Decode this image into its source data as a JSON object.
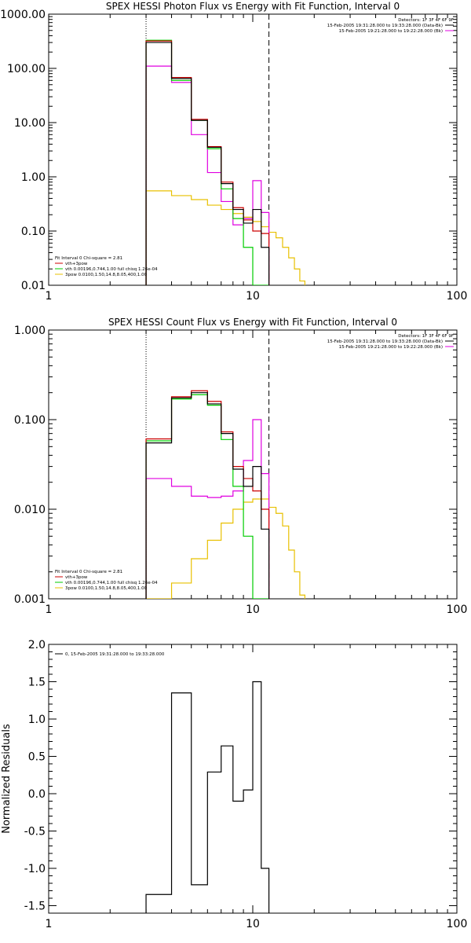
{
  "chart_data": [
    {
      "type": "line",
      "step": true,
      "title": "SPEX HESSI Photon Flux vs Energy with Fit Function, Interval 0",
      "xscale": "log",
      "yscale": "log",
      "xlim": [
        1,
        100
      ],
      "ylim": [
        0.01,
        1000
      ],
      "xticks": [
        "1",
        "10",
        "100"
      ],
      "yticks": [
        "0.01",
        "0.10",
        "1.00",
        "10.00",
        "100.00",
        "1000.00"
      ],
      "ytick_values": [
        0.01,
        0.1,
        1,
        10,
        100,
        1000
      ],
      "ylabel": "",
      "vlines": [
        {
          "x": 3,
          "style": "dotted"
        },
        {
          "x": 12,
          "style": "dashed"
        }
      ],
      "legend_top_right": [
        {
          "text": "Detectors: 1F 3F 4F 6F 9F",
          "color": "",
          "line": false
        },
        {
          "text": "15-Feb-2005 19:31:28.000 to 19:33:28.000 (Data-Bk)",
          "color": "#000000",
          "line": true
        },
        {
          "text": "15-Feb-2005 19:21:28.000 to 19:22:28.000 (Bk)",
          "color": "#e000e0",
          "line": true
        }
      ],
      "legend_bottom_left": [
        {
          "text": "Fit Interval 0   Chi-square = 2.81",
          "color": "",
          "line": false
        },
        {
          "text": "vth+3pow",
          "color": "#cc0000",
          "line": true
        },
        {
          "text": "vth 0.00196,0.744,1.00  full chisq 1.26e-04",
          "color": "#00cc00",
          "line": true
        },
        {
          "text": "3pow 0.0100,1.50,14.8,8.05,400,1.00",
          "color": "#e8c000",
          "line": true
        }
      ],
      "edges": [
        3,
        4,
        5,
        6,
        7,
        8,
        9,
        10,
        11,
        12
      ],
      "series": [
        {
          "name": "Data-Bk",
          "color": "#000000",
          "values": [
            300,
            65,
            11,
            3.5,
            0.75,
            0.25,
            0.14,
            0.25,
            0.05
          ]
        },
        {
          "name": "vth+3pow",
          "color": "#cc0000",
          "values": [
            320,
            68,
            11.5,
            3.6,
            0.8,
            0.27,
            0.16,
            0.1,
            0.09
          ]
        },
        {
          "name": "vth",
          "color": "#00cc00",
          "values": [
            330,
            60,
            11,
            3.3,
            0.6,
            0.17,
            0.05,
            0.008,
            0.003
          ]
        },
        {
          "name": "Bk",
          "color": "#e000e0",
          "values": [
            110,
            55,
            6,
            1.2,
            0.35,
            0.13,
            0.17,
            0.85,
            0.22
          ]
        }
      ],
      "extra_series": [
        {
          "name": "3pow",
          "color": "#e8c000",
          "edges": [
            3,
            4,
            5,
            6,
            7,
            8,
            9,
            10,
            11,
            12,
            13,
            14,
            15,
            16,
            17,
            18
          ],
          "values": [
            0.55,
            0.45,
            0.38,
            0.3,
            0.25,
            0.21,
            0.18,
            0.15,
            0.12,
            0.095,
            0.075,
            0.05,
            0.032,
            0.02,
            0.012
          ]
        }
      ]
    },
    {
      "type": "line",
      "step": true,
      "title": "SPEX HESSI Count Flux vs Energy with Fit Function, Interval 0",
      "xscale": "log",
      "yscale": "log",
      "xlim": [
        1,
        100
      ],
      "ylim": [
        0.001,
        1
      ],
      "xticks": [
        "1",
        "10",
        "100"
      ],
      "yticks": [
        "0.001",
        "0.010",
        "0.100",
        "1.000"
      ],
      "ytick_values": [
        0.001,
        0.01,
        0.1,
        1
      ],
      "ylabel": "",
      "vlines": [
        {
          "x": 3,
          "style": "dotted"
        },
        {
          "x": 12,
          "style": "dashed"
        }
      ],
      "legend_top_right": [
        {
          "text": "Detectors: 1F 3F 4F 6F 9F",
          "color": "",
          "line": false
        },
        {
          "text": "15-Feb-2005 19:31:28.000 to 19:33:28.000 (Data-Bk)",
          "color": "#000000",
          "line": true
        },
        {
          "text": "15-Feb-2005 19:21:28.000 to 19:22:28.000 (Bk)",
          "color": "#e000e0",
          "line": true
        }
      ],
      "legend_bottom_left": [
        {
          "text": "Fit Interval 0   Chi-square = 2.81",
          "color": "",
          "line": false
        },
        {
          "text": "vth+3pow",
          "color": "#cc0000",
          "line": true
        },
        {
          "text": "vth 0.00196,0.744,1.00  full chisq 1.26e-04",
          "color": "#00cc00",
          "line": true
        },
        {
          "text": "3pow 0.0100,1.50,14.8,8.05,400,1.00",
          "color": "#e8c000",
          "line": true
        }
      ],
      "edges": [
        3,
        4,
        5,
        6,
        7,
        8,
        9,
        10,
        11,
        12
      ],
      "series": [
        {
          "name": "Data-Bk",
          "color": "#000000",
          "values": [
            0.055,
            0.175,
            0.2,
            0.15,
            0.07,
            0.028,
            0.018,
            0.03,
            0.006
          ]
        },
        {
          "name": "vth+3pow",
          "color": "#cc0000",
          "values": [
            0.061,
            0.18,
            0.21,
            0.16,
            0.073,
            0.03,
            0.022,
            0.016,
            0.01
          ]
        },
        {
          "name": "vth",
          "color": "#00cc00",
          "values": [
            0.058,
            0.17,
            0.19,
            0.145,
            0.06,
            0.018,
            0.005,
            0.001,
            0.0008
          ]
        },
        {
          "name": "Bk",
          "color": "#e000e0",
          "values": [
            0.022,
            0.018,
            0.014,
            0.0135,
            0.014,
            0.016,
            0.035,
            0.1,
            0.025
          ]
        }
      ],
      "extra_series": [
        {
          "name": "3pow",
          "color": "#e8c000",
          "edges": [
            3,
            4,
            5,
            6,
            7,
            8,
            9,
            10,
            11,
            12,
            13,
            14,
            15,
            16,
            17,
            18
          ],
          "values": [
            0.0008,
            0.0015,
            0.0028,
            0.0045,
            0.007,
            0.01,
            0.012,
            0.013,
            0.013,
            0.0105,
            0.009,
            0.0065,
            0.0035,
            0.002,
            0.0011
          ]
        }
      ]
    },
    {
      "type": "line",
      "step": true,
      "title": "",
      "xscale": "log",
      "yscale": "linear",
      "xlim": [
        1,
        100
      ],
      "ylim": [
        -1.6,
        2.0
      ],
      "xticks": [
        "1",
        "10",
        "100"
      ],
      "yticks": [
        "-1.5",
        "-1.0",
        "-0.5",
        "0.0",
        "0.5",
        "1.0",
        "1.5",
        "2.0"
      ],
      "ytick_values": [
        -1.5,
        -1.0,
        -0.5,
        0.0,
        0.5,
        1.0,
        1.5,
        2.0
      ],
      "ylabel": "Normalized Residuals",
      "vlines": [],
      "legend_top_right": [],
      "legend_bottom_left": [],
      "legend_top_left": [
        {
          "text": "0, 15-Feb-2005 19:31:28.000 to 19:33:28.000",
          "color": "#000000",
          "line": true
        }
      ],
      "edges": [
        3,
        4,
        5,
        6,
        7,
        8,
        9,
        10,
        11,
        12
      ],
      "series": [
        {
          "name": "0, 15-Feb-2005 19:31:28.000 to 19:33:28.000",
          "color": "#000000",
          "values": [
            -1.35,
            1.35,
            -1.22,
            0.29,
            0.64,
            -0.1,
            0.05,
            1.5,
            -1.0
          ]
        }
      ],
      "extra_series": []
    }
  ]
}
